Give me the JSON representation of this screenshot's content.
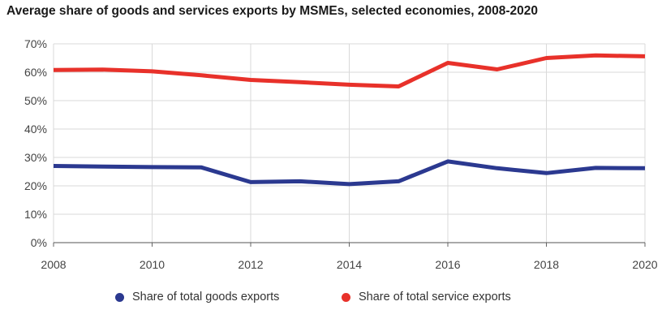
{
  "chart_data": {
    "type": "line",
    "title": "Average share of goods and services exports by MSMEs, selected economies, 2008-2020",
    "xlabel": "",
    "ylabel": "",
    "x": [
      2008,
      2009,
      2010,
      2011,
      2012,
      2013,
      2014,
      2015,
      2016,
      2017,
      2018,
      2019,
      2020
    ],
    "x_ticks": [
      2008,
      2010,
      2012,
      2014,
      2016,
      2018,
      2020
    ],
    "x_tick_labels": [
      "2008",
      "2010",
      "2012",
      "2014",
      "2016",
      "2018",
      "2020"
    ],
    "xlim": [
      2008,
      2020
    ],
    "ylim": [
      0,
      70
    ],
    "y_ticks": [
      0,
      10,
      20,
      30,
      40,
      50,
      60,
      70
    ],
    "y_tick_labels": [
      "0%",
      "10%",
      "20%",
      "30%",
      "40%",
      "50%",
      "60%",
      "70%"
    ],
    "grid": "both",
    "legend_position": "bottom",
    "series": [
      {
        "name": "Share of total goods exports",
        "color": "#2b3990",
        "values": [
          27.0,
          26.8,
          26.6,
          26.5,
          21.3,
          21.6,
          20.6,
          21.6,
          28.6,
          26.2,
          24.5,
          26.3,
          26.2
        ]
      },
      {
        "name": "Share of total service exports",
        "color": "#e8312a",
        "values": [
          60.8,
          60.9,
          60.3,
          58.9,
          57.3,
          56.5,
          55.6,
          55.0,
          63.3,
          61.0,
          65.0,
          65.9,
          65.6
        ]
      }
    ]
  }
}
